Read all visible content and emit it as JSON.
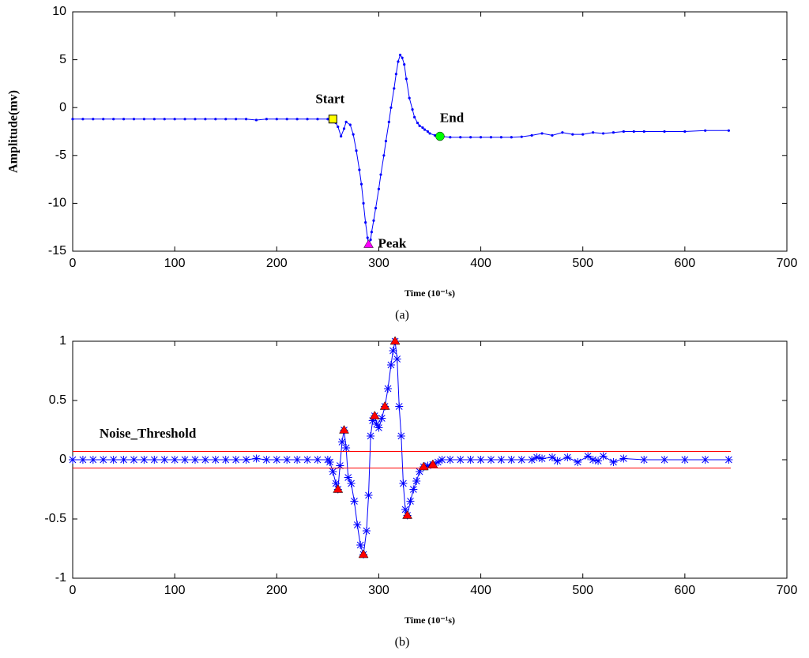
{
  "chart_data": [
    {
      "type": "line",
      "xlabel": "Time (10⁻¹s)",
      "ylabel": "Amplitude(mv)",
      "caption": "(a)",
      "xlim": [
        0,
        700
      ],
      "xticks": [
        0,
        100,
        200,
        300,
        400,
        500,
        600,
        700
      ],
      "ylim": [
        -15,
        10
      ],
      "yticks": [
        -15,
        -10,
        -5,
        0,
        5,
        10
      ],
      "series": [
        {
          "color": "#0000ff",
          "marker": "dot",
          "x": [
            0,
            10,
            20,
            30,
            40,
            50,
            60,
            70,
            80,
            90,
            100,
            110,
            120,
            130,
            140,
            150,
            160,
            170,
            180,
            190,
            200,
            210,
            220,
            230,
            240,
            250,
            255,
            258,
            260,
            263,
            266,
            268,
            272,
            275,
            278,
            281,
            283,
            285,
            287,
            289,
            290,
            292,
            293,
            295,
            297,
            300,
            302,
            305,
            307,
            310,
            312,
            315,
            317,
            319,
            321,
            323,
            325,
            327,
            330,
            333,
            335,
            338,
            340,
            343,
            345,
            348,
            350,
            355,
            360,
            370,
            380,
            390,
            400,
            410,
            420,
            430,
            440,
            450,
            460,
            470,
            480,
            490,
            500,
            510,
            520,
            530,
            540,
            550,
            560,
            580,
            600,
            620,
            643
          ],
          "values": [
            -1.2,
            -1.2,
            -1.2,
            -1.2,
            -1.2,
            -1.2,
            -1.2,
            -1.2,
            -1.2,
            -1.2,
            -1.2,
            -1.2,
            -1.2,
            -1.2,
            -1.2,
            -1.2,
            -1.2,
            -1.2,
            -1.3,
            -1.2,
            -1.2,
            -1.2,
            -1.2,
            -1.2,
            -1.2,
            -1.2,
            -1.2,
            -1.6,
            -2.0,
            -3.0,
            -2.2,
            -1.5,
            -1.8,
            -2.8,
            -4.5,
            -6.5,
            -8,
            -10,
            -12,
            -13.6,
            -14.3,
            -13.8,
            -13,
            -11.8,
            -10.5,
            -8.5,
            -7,
            -5,
            -3.5,
            -1.5,
            0,
            2,
            3.5,
            4.8,
            5.5,
            5.2,
            4.5,
            3,
            1,
            -0.2,
            -1,
            -1.6,
            -1.9,
            -2.1,
            -2.3,
            -2.5,
            -2.7,
            -2.9,
            -3.0,
            -3.1,
            -3.1,
            -3.1,
            -3.1,
            -3.1,
            -3.1,
            -3.1,
            -3.05,
            -2.9,
            -2.7,
            -2.9,
            -2.6,
            -2.8,
            -2.8,
            -2.6,
            -2.7,
            -2.6,
            -2.5,
            -2.5,
            -2.5,
            -2.5,
            -2.5,
            -2.4,
            -2.4
          ]
        }
      ],
      "annotations": [
        {
          "text": "Start",
          "x": 255,
          "y": -1.2,
          "marker": "square",
          "color": "#ffff00"
        },
        {
          "text": "Peak",
          "x": 290,
          "y": -14.3,
          "marker": "triangle",
          "color": "#ff00ff"
        },
        {
          "text": "End",
          "x": 360,
          "y": -3.0,
          "marker": "circle",
          "color": "#00ff00"
        }
      ]
    },
    {
      "type": "line",
      "xlabel": "Time (10⁻¹s)",
      "caption": "(b)",
      "xlim": [
        0,
        700
      ],
      "xticks": [
        0,
        100,
        200,
        300,
        400,
        500,
        600,
        700
      ],
      "ylim": [
        -1,
        1
      ],
      "yticks": [
        -1,
        -0.5,
        0,
        0.5,
        1
      ],
      "series": [
        {
          "color": "#0000ff",
          "marker": "asterisk",
          "x": [
            0,
            10,
            20,
            30,
            40,
            50,
            60,
            70,
            80,
            90,
            100,
            110,
            120,
            130,
            140,
            150,
            160,
            170,
            180,
            190,
            200,
            210,
            220,
            230,
            240,
            250,
            252,
            255,
            258,
            260,
            262,
            264,
            266,
            268,
            270,
            273,
            276,
            279,
            282,
            285,
            288,
            290,
            292,
            294,
            296,
            298,
            300,
            303,
            306,
            309,
            312,
            314,
            316,
            318,
            320,
            322,
            324,
            326,
            328,
            331,
            334,
            337,
            340,
            344,
            348,
            353,
            358,
            362,
            370,
            380,
            390,
            400,
            410,
            420,
            430,
            440,
            450,
            455,
            460,
            470,
            475,
            485,
            495,
            505,
            510,
            515,
            520,
            530,
            540,
            560,
            580,
            600,
            620,
            643
          ],
          "values": [
            0,
            0,
            0,
            0,
            0,
            0,
            0,
            0,
            0,
            0,
            0,
            0,
            0,
            0,
            0,
            0,
            0,
            0,
            0.01,
            0,
            0,
            0,
            0,
            0,
            0,
            0,
            -0.02,
            -0.1,
            -0.2,
            -0.25,
            -0.05,
            0.15,
            0.25,
            0.1,
            -0.15,
            -0.2,
            -0.35,
            -0.55,
            -0.72,
            -0.8,
            -0.6,
            -0.3,
            0.2,
            0.33,
            0.37,
            0.3,
            0.27,
            0.35,
            0.45,
            0.6,
            0.8,
            0.92,
            1.0,
            0.85,
            0.45,
            0.2,
            -0.2,
            -0.42,
            -0.47,
            -0.35,
            -0.25,
            -0.18,
            -0.1,
            -0.06,
            -0.05,
            -0.04,
            -0.02,
            0,
            0,
            0,
            0,
            0,
            0,
            0,
            0,
            0,
            0,
            0.02,
            0.01,
            0.02,
            -0.01,
            0.02,
            -0.02,
            0.03,
            0,
            -0.01,
            0.03,
            -0.02,
            0.01,
            0,
            0,
            0,
            0,
            0
          ]
        },
        {
          "color": "#ff0000",
          "marker": "triangle",
          "line": false,
          "x": [
            260,
            266,
            285,
            296,
            306,
            316,
            328,
            344,
            353
          ],
          "values": [
            -0.25,
            0.25,
            -0.8,
            0.37,
            0.45,
            1.0,
            -0.47,
            -0.06,
            -0.04
          ]
        },
        {
          "color": "#ff0000",
          "marker": "none",
          "x": [
            0,
            645
          ],
          "values": [
            0.07,
            0.07
          ]
        },
        {
          "color": "#ff0000",
          "marker": "none",
          "x": [
            0,
            645
          ],
          "values": [
            -0.07,
            -0.07
          ]
        }
      ],
      "annotations": [
        {
          "text": "Noise_Threshold",
          "x": 20,
          "y": 0.2
        }
      ]
    }
  ]
}
